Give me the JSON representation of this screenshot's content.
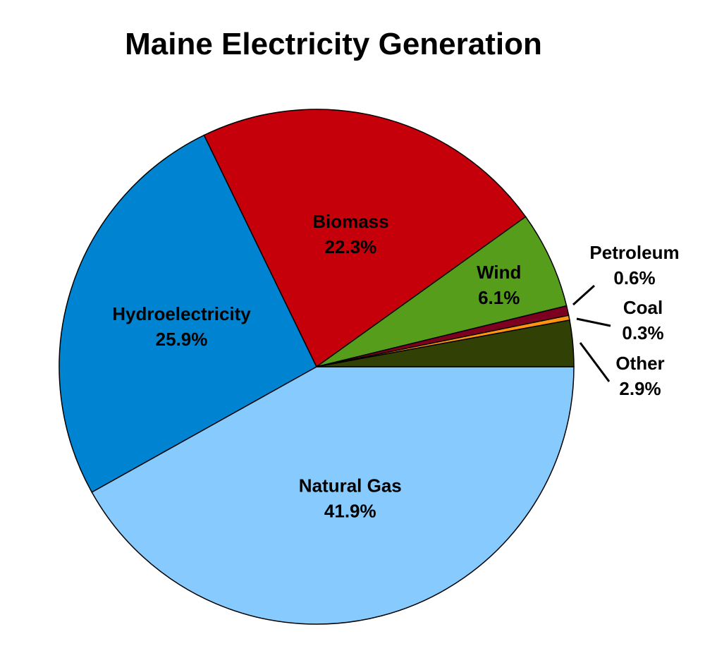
{
  "chart_data": {
    "type": "pie",
    "title": "Maine Electricity Generation",
    "slices": [
      {
        "name": "Natural Gas",
        "value": 41.9,
        "label": "41.9%",
        "color": "#87cafe"
      },
      {
        "name": "Hydroelectricity",
        "value": 25.9,
        "label": "25.9%",
        "color": "#0084d1"
      },
      {
        "name": "Biomass",
        "value": 22.3,
        "label": "22.3%",
        "color": "#c5000b"
      },
      {
        "name": "Wind",
        "value": 6.1,
        "label": "6.1%",
        "color": "#579d1c"
      },
      {
        "name": "Petroleum",
        "value": 0.6,
        "label": "0.6%",
        "color": "#7e0021"
      },
      {
        "name": "Coal",
        "value": 0.3,
        "label": "0.3%",
        "color": "#ff950e"
      },
      {
        "name": "Other",
        "value": 2.9,
        "label": "2.9%",
        "color": "#314004"
      }
    ],
    "start": "3 o'clock, clockwise",
    "legend": "none"
  }
}
